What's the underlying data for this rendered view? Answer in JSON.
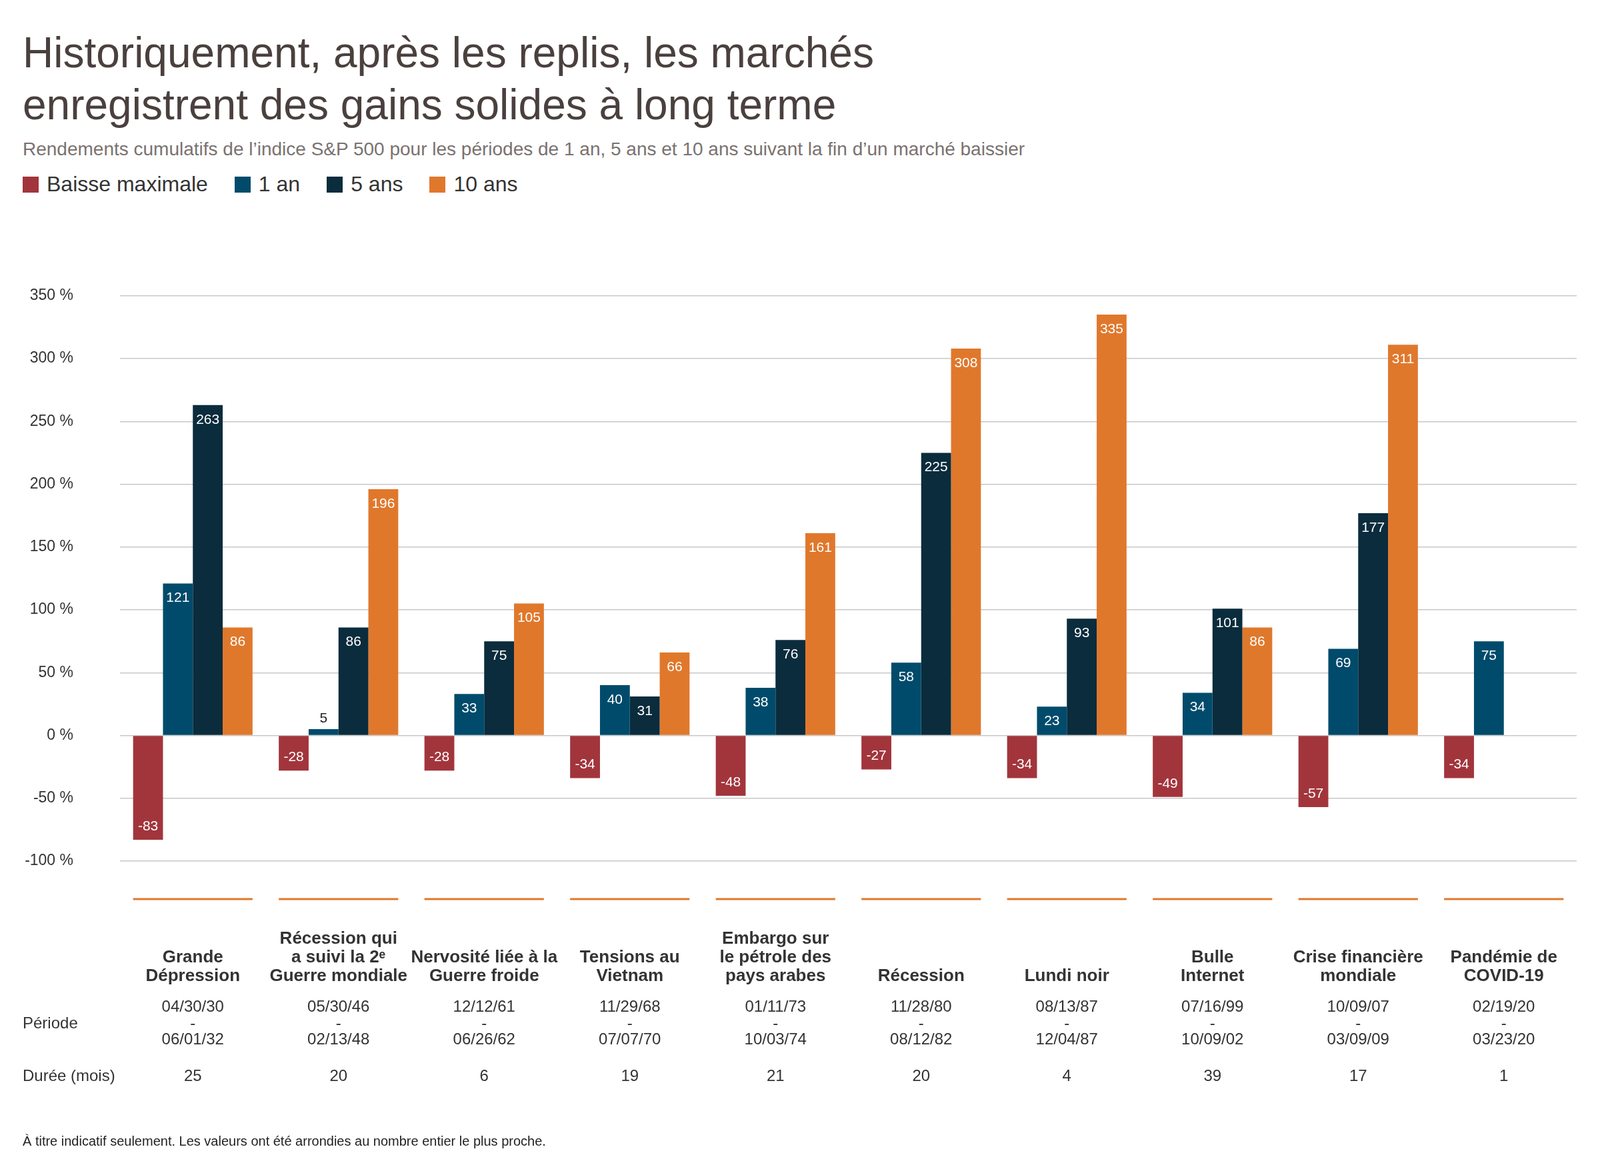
{
  "chart_data": {
    "type": "bar",
    "title": [
      "Historiquement, après les replis, les marchés",
      "enregistrent des gains solides à long terme"
    ],
    "subtitle": "Rendements cumulatifs de l’indice S&P 500 pour les périodes de 1 an, 5 ans et 10 ans suivant la fin d’un marché baissier",
    "categories": [
      [
        "Grande",
        "Dépression"
      ],
      [
        "Récession qui",
        "a suivi la 2ᵉ",
        "Guerre mondiale"
      ],
      [
        "Nervosité liée à la",
        "Guerre froide"
      ],
      [
        "Tensions au",
        "Vietnam"
      ],
      [
        "Embargo sur",
        "le pétrole des",
        "pays arabes"
      ],
      [
        "Récession"
      ],
      [
        "Lundi noir"
      ],
      [
        "Bulle",
        "Internet"
      ],
      [
        "Crise financière",
        "mondiale"
      ],
      [
        "Pandémie de",
        "COVID-19"
      ]
    ],
    "row_labels": {
      "period": "Période",
      "duration": "Durée (mois)"
    },
    "periods": [
      [
        "04/30/30",
        "-",
        "06/01/32"
      ],
      [
        "05/30/46",
        "-",
        "02/13/48"
      ],
      [
        "12/12/61",
        "-",
        "06/26/62"
      ],
      [
        "11/29/68",
        "-",
        "07/07/70"
      ],
      [
        "01/11/73",
        "-",
        "10/03/74"
      ],
      [
        "11/28/80",
        "-",
        "08/12/82"
      ],
      [
        "08/13/87",
        "-",
        "12/04/87"
      ],
      [
        "07/16/99",
        "-",
        "10/09/02"
      ],
      [
        "10/09/07",
        "-",
        "03/09/09"
      ],
      [
        "02/19/20",
        "-",
        "03/23/20"
      ]
    ],
    "durations": [
      25,
      20,
      6,
      19,
      21,
      20,
      4,
      39,
      17,
      1
    ],
    "series": [
      {
        "name": "Baisse maximale",
        "color": "#a2353c",
        "values": [
          -83,
          -28,
          -28,
          -34,
          -48,
          -27,
          -34,
          -49,
          -57,
          -34
        ]
      },
      {
        "name": "1 an",
        "color": "#004b6b",
        "values": [
          121,
          5,
          33,
          40,
          38,
          58,
          23,
          34,
          69,
          75
        ]
      },
      {
        "name": "5 ans",
        "color": "#0b2c3d",
        "values": [
          263,
          86,
          75,
          31,
          76,
          225,
          93,
          101,
          177,
          null
        ]
      },
      {
        "name": "10 ans",
        "color": "#e0782c",
        "values": [
          86,
          196,
          105,
          66,
          161,
          308,
          335,
          86,
          311,
          null
        ]
      }
    ],
    "ylim": [
      -100,
      350
    ],
    "yticks": [
      {
        "value": -100,
        "label": "-100 %"
      },
      {
        "value": -50,
        "label": "-50 %"
      },
      {
        "value": 0,
        "label": "0 %"
      },
      {
        "value": 50,
        "label": "50 %"
      },
      {
        "value": 100,
        "label": "100 %"
      },
      {
        "value": 150,
        "label": "150 %"
      },
      {
        "value": 200,
        "label": "200 %"
      },
      {
        "value": 250,
        "label": "250 %"
      },
      {
        "value": 300,
        "label": "300 %"
      },
      {
        "value": 350,
        "label": "350 %"
      }
    ],
    "grid": true,
    "legend": "top-left",
    "data_labels": true,
    "footnote": "À titre indicatif seulement. Les valeurs ont été arrondies au nombre entier le plus proche."
  }
}
